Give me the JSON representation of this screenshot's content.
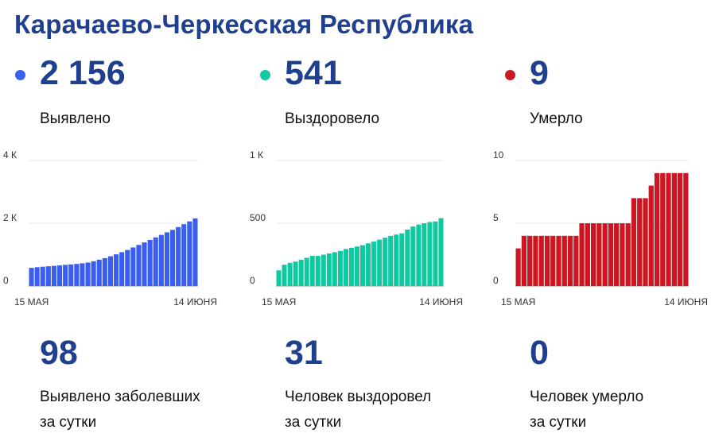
{
  "title": "Карачаево-Черкесская Республика",
  "columns": [
    {
      "color": "#3a5ef0",
      "total": "2 156",
      "label": "Выявлено",
      "daily": "98",
      "daily_label_1": "Выявлено заболевших",
      "daily_label_2": "за сутки"
    },
    {
      "color": "#10c9a0",
      "total": "541",
      "label": "Выздоровело",
      "daily": "31",
      "daily_label_1": "Человек выздоровел",
      "daily_label_2": "за сутки"
    },
    {
      "color": "#cc1722",
      "total": "9",
      "label": "Умерло",
      "daily": "0",
      "daily_label_1": "Человек умерло",
      "daily_label_2": "за сутки"
    }
  ],
  "chart_data": [
    {
      "type": "bar",
      "color": "#3a5ef0",
      "x_start_label": "15 МАЯ",
      "x_end_label": "14 ИЮНЯ",
      "ylim": [
        0,
        4000
      ],
      "y_ticks": [
        {
          "value": 0,
          "label": "0"
        },
        {
          "value": 2000,
          "label": "2 К"
        },
        {
          "value": 4000,
          "label": "4 К"
        }
      ],
      "grid": true,
      "values": [
        580,
        600,
        615,
        630,
        645,
        660,
        675,
        690,
        705,
        725,
        750,
        790,
        840,
        890,
        950,
        1010,
        1080,
        1150,
        1230,
        1310,
        1390,
        1470,
        1550,
        1630,
        1710,
        1790,
        1880,
        1970,
        2060,
        2156
      ]
    },
    {
      "type": "bar",
      "color": "#10c9a0",
      "x_start_label": "15 МАЯ",
      "x_end_label": "14 ИЮНЯ",
      "ylim": [
        0,
        1000
      ],
      "y_ticks": [
        {
          "value": 0,
          "label": "0"
        },
        {
          "value": 500,
          "label": "500"
        },
        {
          "value": 1000,
          "label": "1 К"
        }
      ],
      "grid": true,
      "values": [
        125,
        170,
        185,
        195,
        210,
        225,
        240,
        240,
        250,
        260,
        270,
        280,
        295,
        305,
        315,
        325,
        340,
        355,
        370,
        385,
        400,
        410,
        420,
        450,
        475,
        490,
        500,
        510,
        515,
        541
      ]
    },
    {
      "type": "bar",
      "color": "#cc1722",
      "x_start_label": "15 МАЯ",
      "x_end_label": "14 ИЮНЯ",
      "ylim": [
        0,
        10
      ],
      "y_ticks": [
        {
          "value": 0,
          "label": "0"
        },
        {
          "value": 5,
          "label": "5"
        },
        {
          "value": 10,
          "label": "10"
        }
      ],
      "grid": true,
      "values": [
        3,
        4,
        4,
        4,
        4,
        4,
        4,
        4,
        4,
        4,
        4,
        5,
        5,
        5,
        5,
        5,
        5,
        5,
        5,
        5,
        7,
        7,
        7,
        8,
        9,
        9,
        9,
        9,
        9,
        9
      ]
    }
  ]
}
